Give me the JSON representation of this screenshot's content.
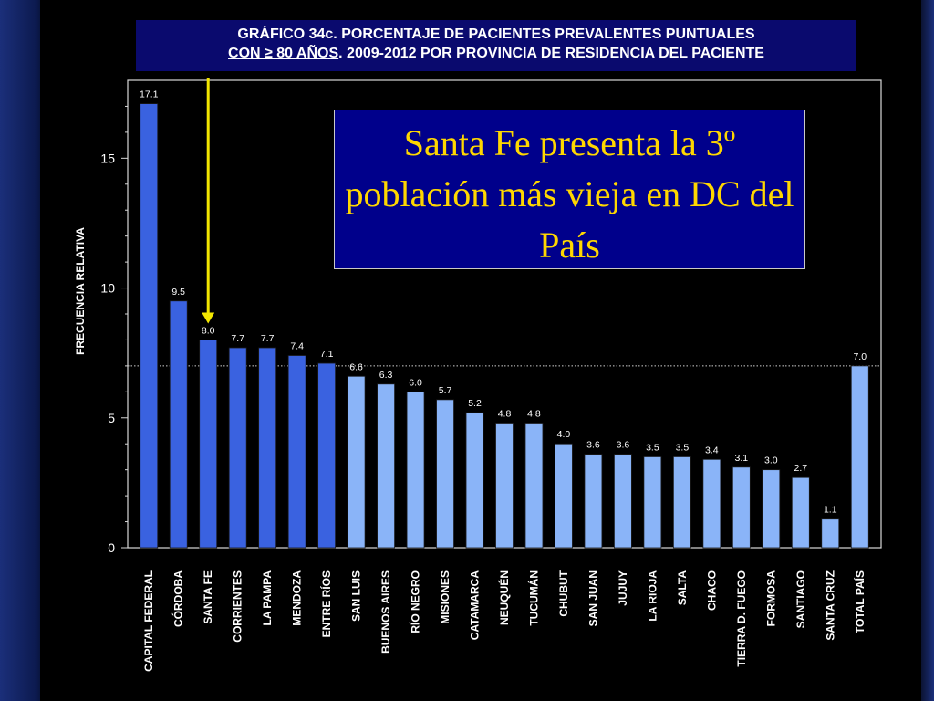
{
  "title": {
    "line1": "GRÁFICO 34c. PORCENTAJE DE PACIENTES PREVALENTES PUNTUALES",
    "line2_underlined": "CON  ≥ 80 AÑOS",
    "line2_rest": ". 2009-2012 POR PROVINCIA DE RESIDENCIA DEL PACIENTE"
  },
  "callout": {
    "text": "Santa Fe presenta la 3º población más vieja en DC del País"
  },
  "colors": {
    "dark_bar": "#3a62e0",
    "light_bar": "#8ab4f8",
    "callout_text": "#ffd700",
    "arrow": "#f2e600"
  },
  "chart_data": {
    "type": "bar",
    "ylabel": "FRECUENCIA RELATIVA",
    "xlabel": "",
    "ylim": [
      0,
      18
    ],
    "yticks": [
      0,
      5,
      10,
      15
    ],
    "grid": false,
    "reference_line": 7.0,
    "highlighted_category": "SANTA FE",
    "categories": [
      "CAPITAL FEDERAL",
      "CÓRDOBA",
      "SANTA FE",
      "CORRIENTES",
      "LA PAMPA",
      "MENDOZA",
      "ENTRE RÍOS",
      "SAN LUIS",
      "BUENOS AIRES",
      "RÍO NEGRO",
      "MISIONES",
      "CATAMARCA",
      "NEUQUÉN",
      "TUCUMÁN",
      "CHUBUT",
      "SAN JUAN",
      "JUJUY",
      "LA RIOJA",
      "SALTA",
      "CHACO",
      "TIERRA  D. FUEGO",
      "FORMOSA",
      "SANTIAGO",
      "SANTA CRUZ",
      "TOTAL PAÍS"
    ],
    "values": [
      17.1,
      9.5,
      8.0,
      7.7,
      7.7,
      7.4,
      7.1,
      6.6,
      6.3,
      6.0,
      5.7,
      5.2,
      4.8,
      4.8,
      4.0,
      3.6,
      3.6,
      3.5,
      3.5,
      3.4,
      3.1,
      3.0,
      2.7,
      1.1,
      7.0
    ],
    "value_labels": [
      "17.1",
      "9.5",
      "8.0",
      "7.7",
      "7.7",
      "7.4",
      "7.1",
      "6.6",
      "6.3",
      "6.0",
      "5.7",
      "5.2",
      "4.8",
      "4.8",
      "4.0",
      "3.6",
      "3.6",
      "3.5",
      "3.5",
      "3.4",
      "3.1",
      "3.0",
      "2.7",
      "1.1",
      "7.0"
    ],
    "bar_shade": [
      "dark",
      "dark",
      "dark",
      "dark",
      "dark",
      "dark",
      "dark",
      "light",
      "light",
      "light",
      "light",
      "light",
      "light",
      "light",
      "light",
      "light",
      "light",
      "light",
      "light",
      "light",
      "light",
      "light",
      "light",
      "light",
      "light"
    ]
  }
}
